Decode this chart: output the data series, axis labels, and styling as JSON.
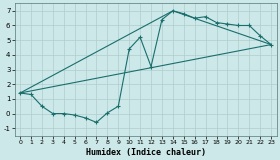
{
  "xlabel": "Humidex (Indice chaleur)",
  "bg_color": "#cce8e8",
  "grid_color": "#b0cccc",
  "line_color": "#1a6e6e",
  "xlim": [
    -0.5,
    23.5
  ],
  "ylim": [
    -1.5,
    7.5
  ],
  "xticks": [
    0,
    1,
    2,
    3,
    4,
    5,
    6,
    7,
    8,
    9,
    10,
    11,
    12,
    13,
    14,
    15,
    16,
    17,
    18,
    19,
    20,
    21,
    22,
    23
  ],
  "yticks": [
    -1,
    0,
    1,
    2,
    3,
    4,
    5,
    6,
    7
  ],
  "curve1_x": [
    0,
    1,
    2,
    3,
    4,
    5,
    6,
    7,
    8,
    9,
    10,
    11,
    12,
    13,
    14,
    15,
    16,
    17,
    18,
    19,
    20,
    21,
    22,
    23
  ],
  "curve1_y": [
    1.4,
    1.3,
    0.5,
    0.0,
    0.0,
    -0.1,
    -0.3,
    -0.6,
    0.05,
    0.5,
    4.4,
    5.2,
    3.2,
    6.4,
    7.0,
    6.8,
    6.5,
    6.6,
    6.2,
    6.1,
    6.0,
    6.0,
    5.3,
    4.7
  ],
  "line1_x": [
    0,
    23
  ],
  "line1_y": [
    1.4,
    4.7
  ],
  "line2_x": [
    0,
    14,
    23
  ],
  "line2_y": [
    1.4,
    7.0,
    4.7
  ]
}
